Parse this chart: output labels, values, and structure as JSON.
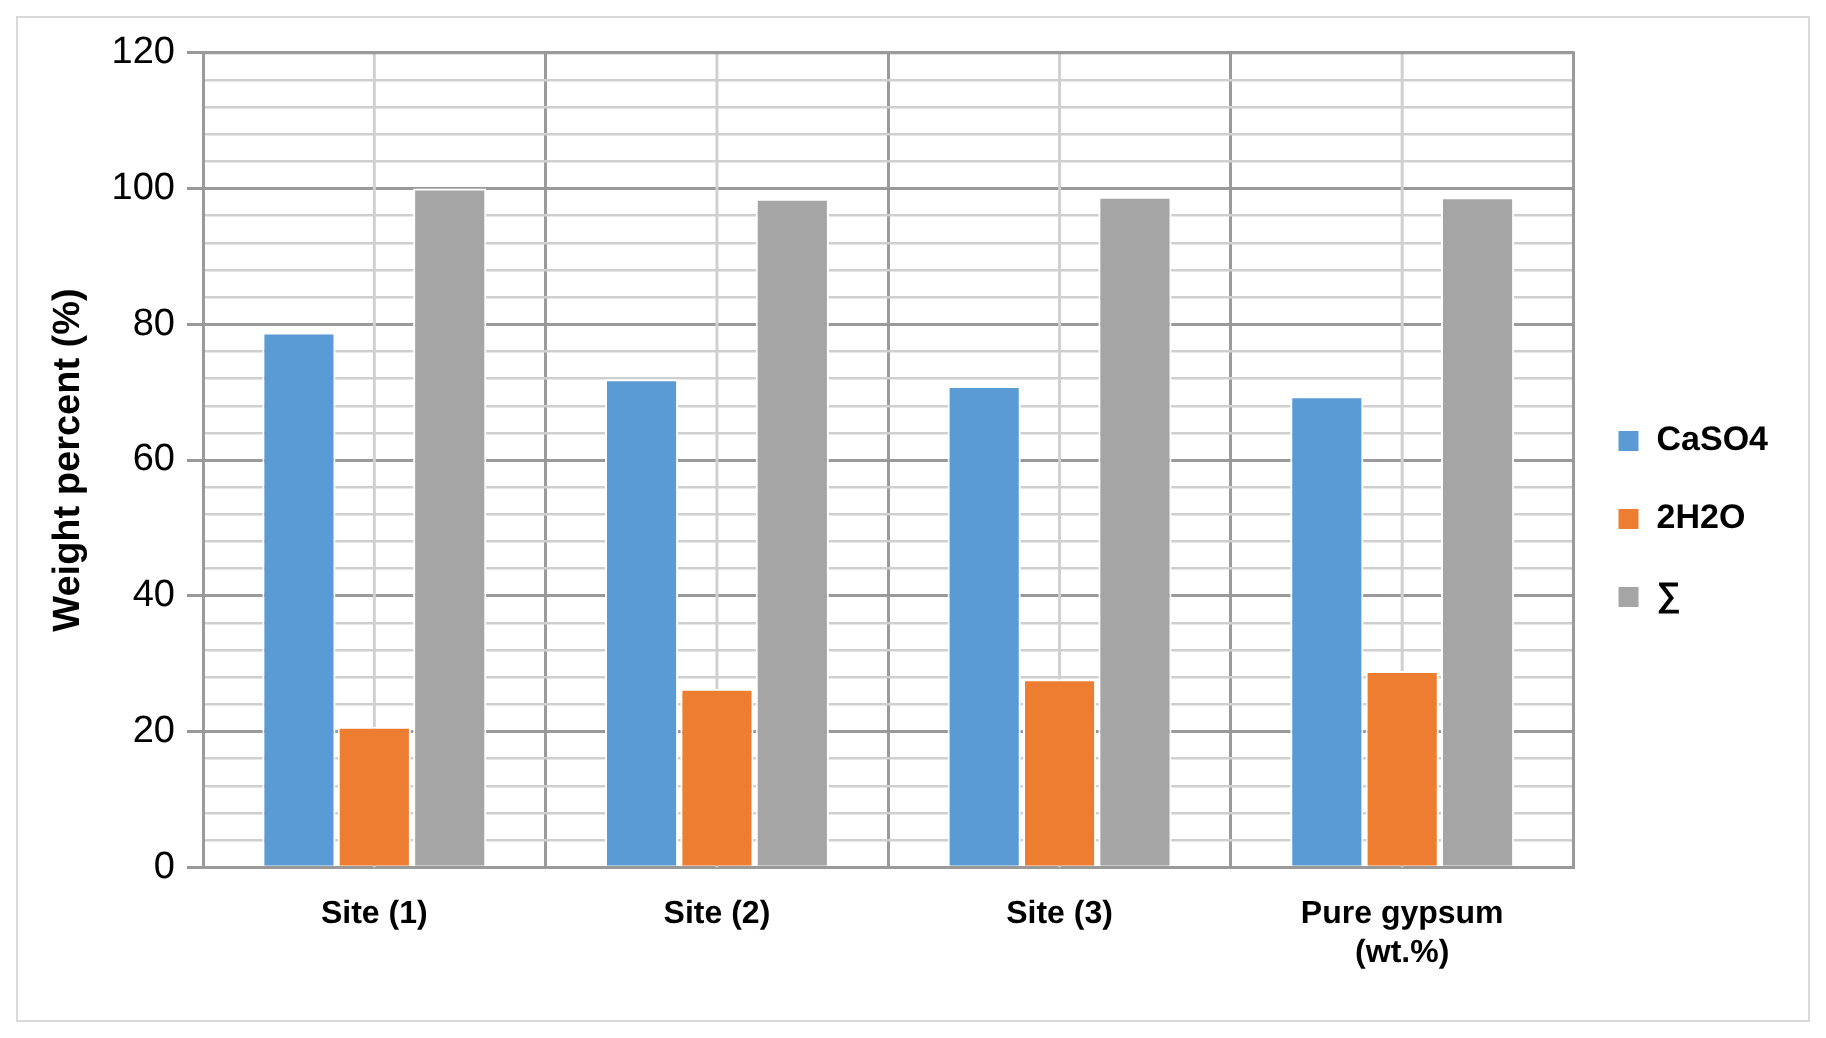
{
  "chart_data": {
    "type": "bar",
    "ylabel": "Weight percent (%)",
    "categories": [
      "Site (1)",
      "Site (2)",
      "Site (3)",
      "Pure gypsum (wt.%)"
    ],
    "series": [
      {
        "name": "CaSO4",
        "color": "#5b9bd5",
        "values": [
          78.8,
          71.9,
          70.9,
          69.4
        ]
      },
      {
        "name": "2H2O",
        "color": "#ed7d31",
        "values": [
          20.7,
          26.3,
          27.7,
          28.9
        ]
      },
      {
        "name": "∑",
        "color": "#a5a5a5",
        "values": [
          100,
          98.5,
          98.8,
          98.7
        ]
      }
    ],
    "ylim": [
      0,
      120
    ],
    "yticks": [
      0,
      {
        "value": 4,
        "label": null
      },
      {
        "value": 8,
        "label": null
      },
      {
        "value": 12,
        "label": null
      },
      {
        "value": 16,
        "label": null
      },
      20,
      {
        "value": 24,
        "label": null
      },
      {
        "value": 28,
        "label": null
      },
      {
        "value": 32,
        "label": null
      },
      {
        "value": 36,
        "label": null
      },
      40,
      {
        "value": 44,
        "label": null
      },
      {
        "value": 48,
        "label": null
      },
      {
        "value": 52,
        "label": null
      },
      {
        "value": 56,
        "label": null
      },
      60,
      {
        "value": 64,
        "label": null
      },
      {
        "value": 68,
        "label": null
      },
      {
        "value": 72,
        "label": null
      },
      {
        "value": 76,
        "label": null
      },
      80,
      {
        "value": 84,
        "label": null
      },
      {
        "value": 88,
        "label": null
      },
      {
        "value": 92,
        "label": null
      },
      {
        "value": 96,
        "label": null
      },
      100,
      {
        "value": 104,
        "label": null
      },
      {
        "value": 108,
        "label": null
      },
      {
        "value": 112,
        "label": null
      },
      {
        "value": 116,
        "label": null
      },
      120
    ],
    "grid": true,
    "legend": "right"
  }
}
